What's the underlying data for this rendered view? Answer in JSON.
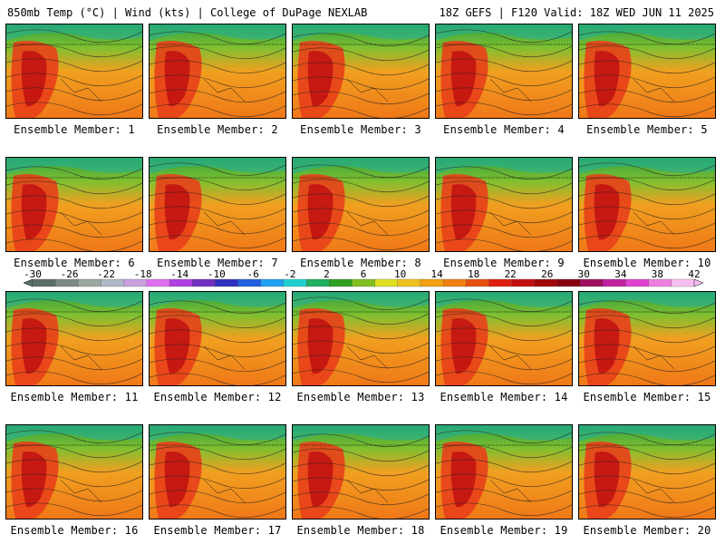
{
  "header": {
    "left": "850mb Temp (°C) | Wind (kts) | College of DuPage NEXLAB",
    "right": "18Z GEFS | F120 Valid: 18Z WED JUN 11 2025"
  },
  "panels": [
    {
      "label": "Ensemble Member: 1"
    },
    {
      "label": "Ensemble Member: 2"
    },
    {
      "label": "Ensemble Member: 3"
    },
    {
      "label": "Ensemble Member: 4"
    },
    {
      "label": "Ensemble Member: 5"
    },
    {
      "label": "Ensemble Member: 6"
    },
    {
      "label": "Ensemble Member: 7"
    },
    {
      "label": "Ensemble Member: 8"
    },
    {
      "label": "Ensemble Member: 9"
    },
    {
      "label": "Ensemble Member: 10"
    },
    {
      "label": "Ensemble Member: 11"
    },
    {
      "label": "Ensemble Member: 12"
    },
    {
      "label": "Ensemble Member: 13"
    },
    {
      "label": "Ensemble Member: 14"
    },
    {
      "label": "Ensemble Member: 15"
    },
    {
      "label": "Ensemble Member: 16"
    },
    {
      "label": "Ensemble Member: 17"
    },
    {
      "label": "Ensemble Member: 18"
    },
    {
      "label": "Ensemble Member: 19"
    },
    {
      "label": "Ensemble Member: 20"
    }
  ],
  "colorbar": {
    "ticks": [
      "-30",
      "-26",
      "-22",
      "-18",
      "-14",
      "-10",
      "-6",
      "-2",
      "2",
      "6",
      "10",
      "14",
      "18",
      "22",
      "26",
      "30",
      "34",
      "38",
      "42"
    ],
    "colors": [
      "#5a6f68",
      "#7c8a84",
      "#9aa8a0",
      "#b0b8c8",
      "#c8a0e0",
      "#e070f0",
      "#b040e0",
      "#7030c0",
      "#3030c0",
      "#2060e0",
      "#20a0f0",
      "#20d0d0",
      "#20b060",
      "#30a020",
      "#80c020",
      "#e0e020",
      "#f0c020",
      "#f0a010",
      "#f08010",
      "#e85010",
      "#e02010",
      "#c01010",
      "#a00808",
      "#880010",
      "#a01060",
      "#c020a0",
      "#e040d0",
      "#f080e0",
      "#f8c0f0"
    ]
  }
}
